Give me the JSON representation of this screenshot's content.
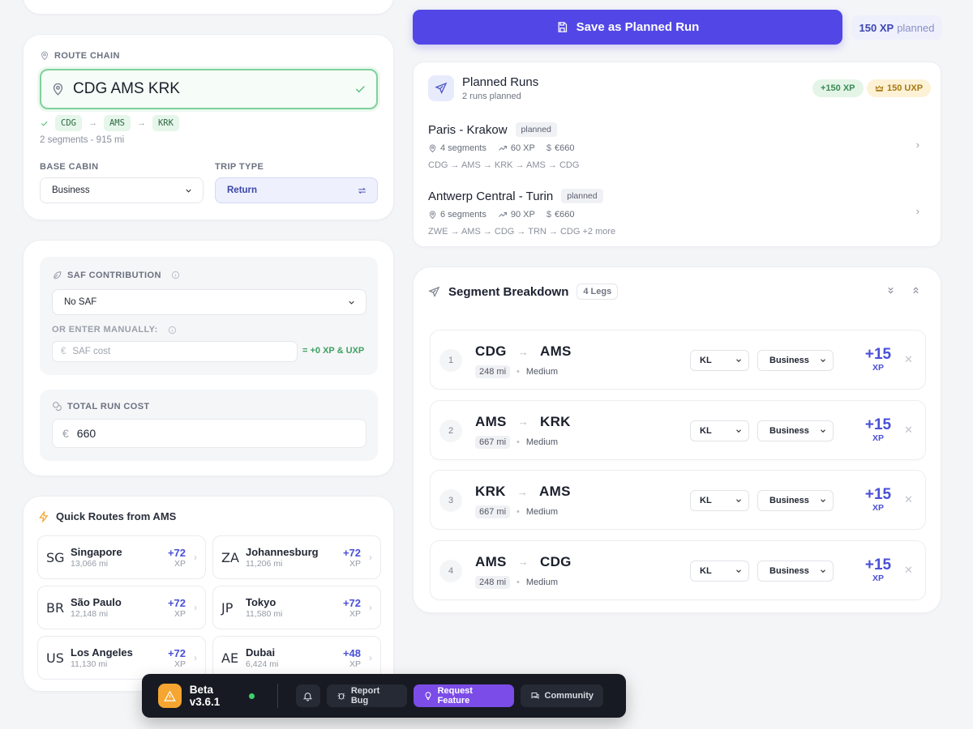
{
  "route": {
    "section_label": "ROUTE CHAIN",
    "input_value": "CDG AMS KRK",
    "chain": [
      "CDG",
      "AMS",
      "KRK"
    ],
    "summary": "2 segments - 915 mi",
    "base_cabin_label": "BASE CABIN",
    "base_cabin_value": "Business",
    "trip_type_label": "TRIP TYPE",
    "trip_type_value": "Return"
  },
  "costs": {
    "saf_label": "SAF CONTRIBUTION",
    "saf_select_value": "No SAF",
    "manual_label": "OR ENTER MANUALLY:",
    "saf_currency": "€",
    "saf_placeholder": "SAF cost",
    "saf_result": "= +0 XP & UXP",
    "total_label": "TOTAL RUN COST",
    "total_currency": "€",
    "total_value": "660"
  },
  "quick_routes": {
    "title": "Quick Routes from AMS",
    "items": [
      {
        "cc": "SG",
        "city": "Singapore",
        "dist": "13,066 mi",
        "xp": "+72",
        "unit": "XP"
      },
      {
        "cc": "ZA",
        "city": "Johannesburg",
        "dist": "11,206 mi",
        "xp": "+72",
        "unit": "XP"
      },
      {
        "cc": "BR",
        "city": "São Paulo",
        "dist": "12,148 mi",
        "xp": "+72",
        "unit": "XP"
      },
      {
        "cc": "JP",
        "city": "Tokyo",
        "dist": "11,580 mi",
        "xp": "+72",
        "unit": "XP"
      },
      {
        "cc": "US",
        "city": "Los Angeles",
        "dist": "11,130 mi",
        "xp": "+72",
        "unit": "XP"
      },
      {
        "cc": "AE",
        "city": "Dubai",
        "dist": "6,424 mi",
        "xp": "+48",
        "unit": "XP"
      }
    ]
  },
  "toolbar": {
    "save_label": "Save as Planned Run",
    "xp_planned_num": "150 XP",
    "xp_planned_text": "planned"
  },
  "planned_runs": {
    "title": "Planned Runs",
    "subtitle": "2 runs planned",
    "pill_xp": "+150 XP",
    "pill_uxp": "150 UXP",
    "runs": [
      {
        "name": "Paris - Krakow",
        "status": "planned",
        "segments": "4 segments",
        "xp": "60 XP",
        "cost": "€660",
        "path": "CDG → AMS → KRK → AMS → CDG"
      },
      {
        "name": "Antwerp Central - Turin",
        "status": "planned",
        "segments": "6 segments",
        "xp": "90 XP",
        "cost": "€660",
        "path": "ZWE → AMS → CDG → TRN → CDG +2 more"
      }
    ]
  },
  "segments": {
    "title": "Segment Breakdown",
    "legs_badge": "4 Legs",
    "rows": [
      {
        "num": "1",
        "from": "CDG",
        "to": "AMS",
        "miles": "248 mi",
        "haul": "Medium",
        "airline": "KL",
        "cabin": "Business",
        "xp": "+15",
        "unit": "XP"
      },
      {
        "num": "2",
        "from": "AMS",
        "to": "KRK",
        "miles": "667 mi",
        "haul": "Medium",
        "airline": "KL",
        "cabin": "Business",
        "xp": "+15",
        "unit": "XP"
      },
      {
        "num": "3",
        "from": "KRK",
        "to": "AMS",
        "miles": "667 mi",
        "haul": "Medium",
        "airline": "KL",
        "cabin": "Business",
        "xp": "+15",
        "unit": "XP"
      },
      {
        "num": "4",
        "from": "AMS",
        "to": "CDG",
        "miles": "248 mi",
        "haul": "Medium",
        "airline": "KL",
        "cabin": "Business",
        "xp": "+15",
        "unit": "XP"
      }
    ]
  },
  "beta_bar": {
    "version": "Beta v3.6.1",
    "report_bug": "Report Bug",
    "request_feature": "Request Feature",
    "community": "Community"
  },
  "colors": {
    "accent": "#5247e6",
    "xp_purple": "#4a4fd8",
    "success_green": "#3fa060",
    "beta_orange": "#f6a531"
  }
}
